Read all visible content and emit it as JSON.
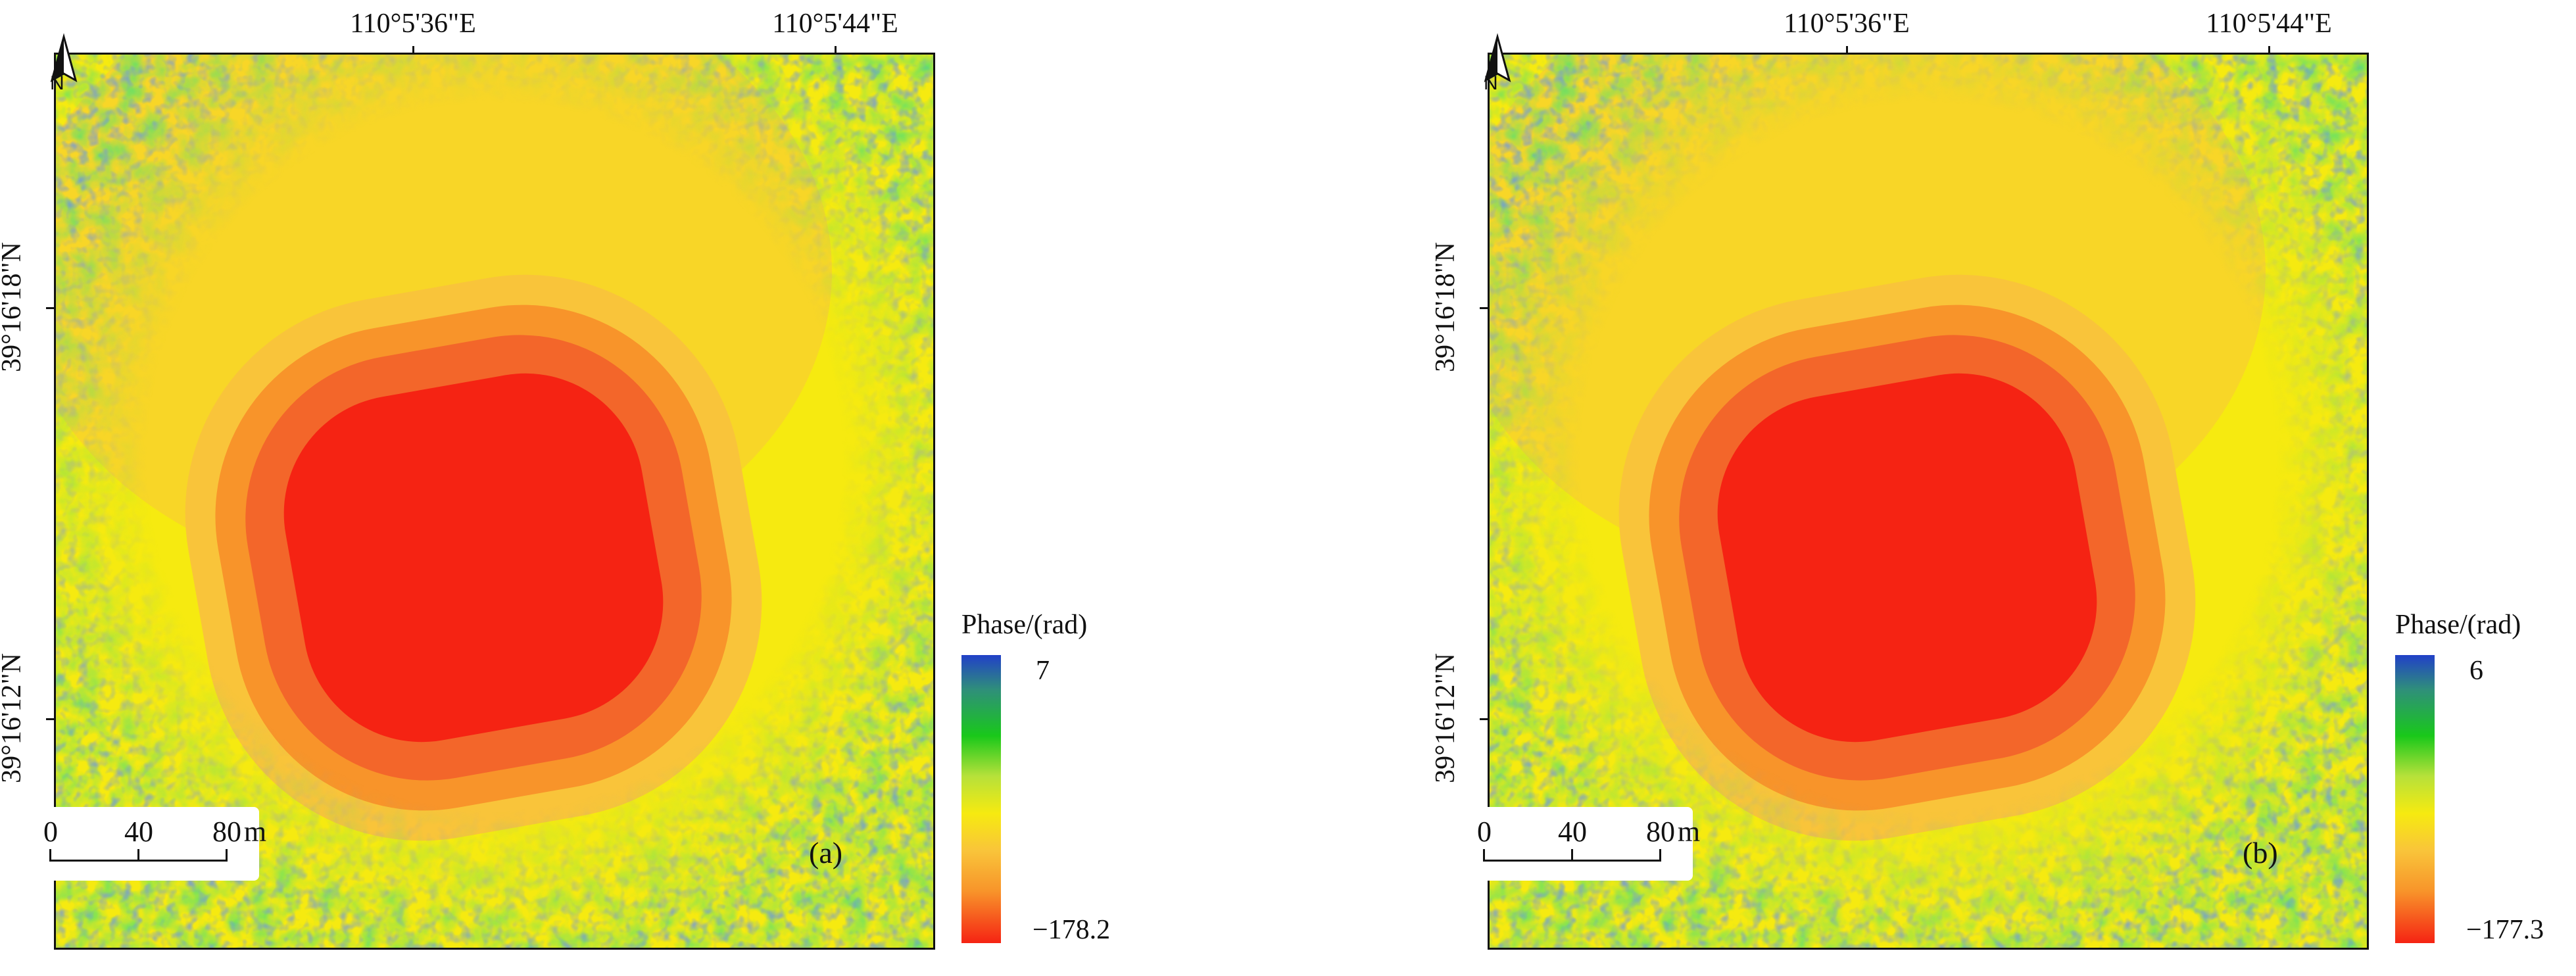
{
  "colors": {
    "blue": "#2140c8",
    "teal": "#2f8f7a",
    "green": "#19c81a",
    "yellow_green": "#b6e13a",
    "yellow": "#f6ea10",
    "light_orange": "#f9c43a",
    "orange": "#f8942a",
    "dark_orange": "#f3662a",
    "red": "#f52313"
  },
  "axes": {
    "lon_labels": [
      "110°5'36\"E",
      "110°5'44\"E"
    ],
    "lat_labels": [
      "39°16'18\"N",
      "39°16'12\"N"
    ]
  },
  "north_arrow": {
    "label": "N"
  },
  "scale_bar": {
    "ticks": [
      "0",
      "40",
      "80"
    ],
    "unit": "m"
  },
  "colorbar": {
    "title": "Phase/(rad)"
  },
  "panels": [
    {
      "id": "a",
      "label": "(a)",
      "colorbar_max": "7",
      "colorbar_min": "−178.2"
    },
    {
      "id": "b",
      "label": "(b)",
      "colorbar_max": "6",
      "colorbar_min": "−177.3"
    }
  ]
}
